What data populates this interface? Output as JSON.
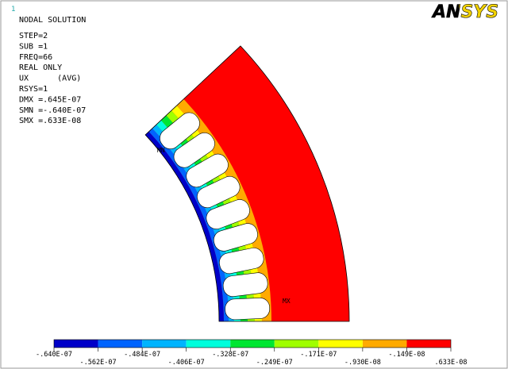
{
  "header": {
    "window_number": "1",
    "title": "NODAL SOLUTION",
    "lines": [
      "STEP=2",
      "SUB =1",
      "FREQ=66",
      "REAL ONLY",
      "UX      (AVG)",
      "RSYS=1",
      "DMX =.645E-07",
      "SMN =-.640E-07",
      "SMX =.633E-08"
    ]
  },
  "logo": "ANSYS",
  "markers": {
    "min": "MN",
    "max": "MX"
  },
  "legend": {
    "colors": [
      "#0000c8",
      "#0064ff",
      "#00b4ff",
      "#00ffdc",
      "#00e632",
      "#a0ff00",
      "#ffff00",
      "#ffaa00",
      "#ff0000"
    ],
    "labels": [
      "-.640E-07",
      "-.562E-07",
      "-.484E-07",
      "-.406E-07",
      "-.328E-07",
      "-.249E-07",
      "-.171E-07",
      "-.930E-08",
      "-.149E-08",
      ".633E-08"
    ]
  }
}
